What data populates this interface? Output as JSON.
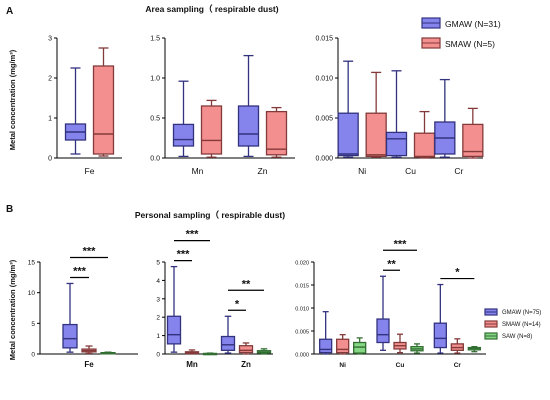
{
  "figure": {
    "panel_a_letter": "A",
    "panel_b_letter": "B",
    "panel_a_title": "Area sampling（ respirable dust)",
    "panel_b_title": "Personal sampling（ respirable dust)",
    "ylabel_a": "Metal concentration (mg/m³)",
    "ylabel_b": "Metal concentration (mg/m³)"
  },
  "chart_data": [
    {
      "type": "box",
      "title": "Area sampling（ respirable dust)",
      "ylabel": "Metal concentration (mg/m³)",
      "legend_position": "top-right",
      "series": [
        {
          "name": "GMAW (N=31)",
          "color": "#5b5be6"
        },
        {
          "name": "SMAW (N=5)",
          "color": "#f06a6a"
        }
      ],
      "panels": [
        {
          "ylim": [
            0,
            3
          ],
          "yticks": [
            "0",
            "1",
            "2",
            "3"
          ],
          "groups": [
            {
              "category": "Fe",
              "boxes": [
                {
                  "series": "GMAW (N=31)",
                  "min": 0.1,
                  "q1": 0.45,
                  "median": 0.65,
                  "q3": 0.85,
                  "max": 2.25
                },
                {
                  "series": "SMAW (N=5)",
                  "min": 0.05,
                  "q1": 0.1,
                  "median": 0.6,
                  "q3": 2.3,
                  "max": 2.75
                }
              ]
            }
          ]
        },
        {
          "ylim": [
            0,
            1.5
          ],
          "yticks": [
            "0.0",
            "0.5",
            "1.0",
            "1.5"
          ],
          "groups": [
            {
              "category": "Mn",
              "boxes": [
                {
                  "series": "GMAW (N=31)",
                  "min": 0.02,
                  "q1": 0.15,
                  "median": 0.23,
                  "q3": 0.42,
                  "max": 0.96
                },
                {
                  "series": "SMAW (N=5)",
                  "min": 0.01,
                  "q1": 0.05,
                  "median": 0.22,
                  "q3": 0.65,
                  "max": 0.72
                }
              ]
            },
            {
              "category": "Zn",
              "boxes": [
                {
                  "series": "GMAW (N=31)",
                  "min": 0.02,
                  "q1": 0.15,
                  "median": 0.3,
                  "q3": 0.65,
                  "max": 1.28
                },
                {
                  "series": "SMAW (N=5)",
                  "min": 0.01,
                  "q1": 0.04,
                  "median": 0.11,
                  "q3": 0.58,
                  "max": 0.63
                }
              ]
            }
          ]
        },
        {
          "ylim": [
            0,
            0.015
          ],
          "yticks": [
            "0.000",
            "0.005",
            "0.010",
            "0.015"
          ],
          "groups": [
            {
              "category": "Ni",
              "boxes": [
                {
                  "series": "GMAW (N=31)",
                  "min": 0.0001,
                  "q1": 0.0003,
                  "median": 0.0005,
                  "q3": 0.0056,
                  "max": 0.0121
                },
                {
                  "series": "SMAW (N=5)",
                  "min": 0.0001,
                  "q1": 0.0002,
                  "median": 0.0004,
                  "q3": 0.0056,
                  "max": 0.0107
                }
              ]
            },
            {
              "category": "Cu",
              "boxes": [
                {
                  "series": "GMAW (N=31)",
                  "min": 0.0001,
                  "q1": 0.0003,
                  "median": 0.0024,
                  "q3": 0.0032,
                  "max": 0.0109
                },
                {
                  "series": "SMAW (N=5)",
                  "min": 0.0,
                  "q1": 0.0001,
                  "median": 0.0002,
                  "q3": 0.0031,
                  "max": 0.0058
                }
              ]
            },
            {
              "category": "Cr",
              "boxes": [
                {
                  "series": "GMAW (N=31)",
                  "min": 0.0001,
                  "q1": 0.0005,
                  "median": 0.0025,
                  "q3": 0.0045,
                  "max": 0.0098
                },
                {
                  "series": "SMAW (N=5)",
                  "min": 0.0,
                  "q1": 0.0002,
                  "median": 0.0008,
                  "q3": 0.0042,
                  "max": 0.0062
                }
              ]
            }
          ]
        }
      ]
    },
    {
      "type": "box",
      "title": "Personal sampling（ respirable dust)",
      "ylabel": "Metal concentration (mg/m³)",
      "legend_position": "right",
      "series": [
        {
          "name": "GMAW (N=75)",
          "color": "#5b5be6"
        },
        {
          "name": "SMAW (N=14)",
          "color": "#f06a6a"
        },
        {
          "name": "SAW (N=8)",
          "color": "#5cc85c"
        }
      ],
      "panels": [
        {
          "ylim": [
            0,
            15
          ],
          "yticks": [
            "0",
            "5",
            "10",
            "15"
          ],
          "groups": [
            {
              "category": "Fe",
              "boxes": [
                {
                  "series": "GMAW (N=75)",
                  "min": 0.3,
                  "q1": 1.0,
                  "median": 2.5,
                  "q3": 4.8,
                  "max": 11.5
                },
                {
                  "series": "SMAW (N=14)",
                  "min": 0.1,
                  "q1": 0.35,
                  "median": 0.55,
                  "q3": 0.8,
                  "max": 1.3
                },
                {
                  "series": "SAW (N=8)",
                  "min": 0.05,
                  "q1": 0.1,
                  "median": 0.15,
                  "q3": 0.22,
                  "max": 0.3
                }
              ]
            }
          ],
          "significance": [
            {
              "label": "***",
              "from": "GMAW (N=75)",
              "to": "SAW (N=8)",
              "category": "Fe"
            },
            {
              "label": "***",
              "from": "GMAW (N=75)",
              "to": "SMAW (N=14)",
              "category": "Fe"
            }
          ]
        },
        {
          "ylim": [
            0,
            5
          ],
          "yticks": [
            "0",
            "1",
            "2",
            "3",
            "4",
            "5"
          ],
          "groups": [
            {
              "category": "Mn",
              "boxes": [
                {
                  "series": "GMAW (N=75)",
                  "min": 0.1,
                  "q1": 0.55,
                  "median": 1.05,
                  "q3": 2.05,
                  "max": 4.75
                },
                {
                  "series": "SMAW (N=14)",
                  "min": 0.0,
                  "q1": 0.03,
                  "median": 0.07,
                  "q3": 0.12,
                  "max": 0.22
                },
                {
                  "series": "SAW (N=8)",
                  "min": 0.0,
                  "q1": 0.01,
                  "median": 0.02,
                  "q3": 0.03,
                  "max": 0.05
                }
              ]
            },
            {
              "category": "Zn",
              "boxes": [
                {
                  "series": "GMAW (N=75)",
                  "min": 0.05,
                  "q1": 0.2,
                  "median": 0.5,
                  "q3": 0.95,
                  "max": 2.05
                },
                {
                  "series": "SMAW (N=14)",
                  "min": 0.0,
                  "q1": 0.08,
                  "median": 0.2,
                  "q3": 0.45,
                  "max": 0.6
                },
                {
                  "series": "SAW (N=8)",
                  "min": 0.0,
                  "q1": 0.05,
                  "median": 0.1,
                  "q3": 0.18,
                  "max": 0.28
                }
              ]
            }
          ],
          "significance": [
            {
              "label": "***",
              "from": "GMAW (N=75)",
              "to": "SAW (N=8)",
              "category": "Mn"
            },
            {
              "label": "***",
              "from": "GMAW (N=75)",
              "to": "SMAW (N=14)",
              "category": "Mn"
            },
            {
              "label": "**",
              "from": "GMAW (N=75)",
              "to": "SAW (N=8)",
              "category": "Zn"
            },
            {
              "label": "*",
              "from": "GMAW (N=75)",
              "to": "SMAW (N=14)",
              "category": "Zn"
            }
          ]
        },
        {
          "ylim": [
            0,
            0.02
          ],
          "yticks": [
            "0.000",
            "0.005",
            "0.010",
            "0.015",
            "0.020"
          ],
          "groups": [
            {
              "category": "Ni",
              "boxes": [
                {
                  "series": "GMAW (N=75)",
                  "min": 0.0,
                  "q1": 0.0003,
                  "median": 0.001,
                  "q3": 0.0032,
                  "max": 0.0092
                },
                {
                  "series": "SMAW (N=14)",
                  "min": 0.0,
                  "q1": 0.0003,
                  "median": 0.001,
                  "q3": 0.0032,
                  "max": 0.0042
                },
                {
                  "series": "SAW (N=8)",
                  "min": 0.0,
                  "q1": 0.0002,
                  "median": 0.0015,
                  "q3": 0.0025,
                  "max": 0.0035
                }
              ]
            },
            {
              "category": "Cu",
              "boxes": [
                {
                  "series": "GMAW (N=75)",
                  "min": 0.0008,
                  "q1": 0.0025,
                  "median": 0.0042,
                  "q3": 0.0076,
                  "max": 0.0169
                },
                {
                  "series": "SMAW (N=14)",
                  "min": 0.0003,
                  "q1": 0.0011,
                  "median": 0.0018,
                  "q3": 0.0025,
                  "max": 0.0043
                },
                {
                  "series": "SAW (N=8)",
                  "min": 0.0002,
                  "q1": 0.0007,
                  "median": 0.0011,
                  "q3": 0.0016,
                  "max": 0.0022
                }
              ]
            },
            {
              "category": "Cr",
              "boxes": [
                {
                  "series": "GMAW (N=75)",
                  "min": 0.0002,
                  "q1": 0.0014,
                  "median": 0.0034,
                  "q3": 0.0067,
                  "max": 0.0151
                },
                {
                  "series": "SMAW (N=14)",
                  "min": 0.0002,
                  "q1": 0.0008,
                  "median": 0.0014,
                  "q3": 0.0022,
                  "max": 0.0033
                },
                {
                  "series": "SAW (N=8)",
                  "min": 0.0005,
                  "q1": 0.0009,
                  "median": 0.0012,
                  "q3": 0.0014,
                  "max": 0.0016
                }
              ]
            }
          ],
          "significance": [
            {
              "label": "***",
              "from": "GMAW (N=75)",
              "to": "SAW (N=8)",
              "category": "Cu"
            },
            {
              "label": "**",
              "from": "GMAW (N=75)",
              "to": "SMAW (N=14)",
              "category": "Cu"
            },
            {
              "label": "*",
              "from": "GMAW (N=75)",
              "to": "SAW (N=8)",
              "category": "Cr"
            }
          ]
        }
      ]
    }
  ]
}
